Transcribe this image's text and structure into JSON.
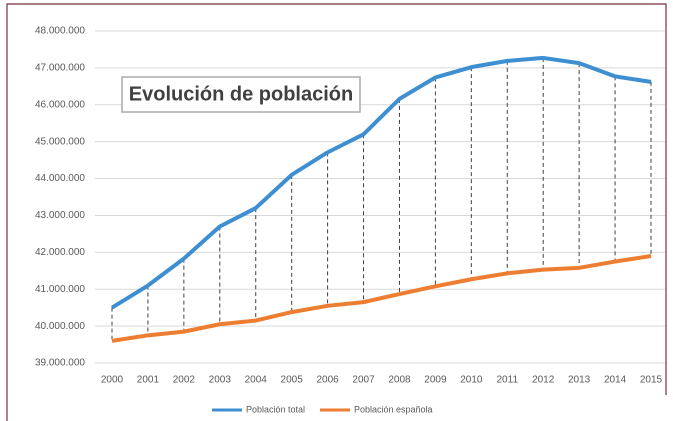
{
  "chart_data": {
    "type": "line",
    "title": "Evolución de población",
    "categories": [
      "2000",
      "2001",
      "2002",
      "2003",
      "2004",
      "2005",
      "2006",
      "2007",
      "2008",
      "2009",
      "2010",
      "2011",
      "2012",
      "2013",
      "2014",
      "2015"
    ],
    "series": [
      {
        "name": "Población total",
        "color": "#3d8fd1",
        "values": [
          40500000,
          41100000,
          41830000,
          42700000,
          43200000,
          44100000,
          44710000,
          45200000,
          46160000,
          46740000,
          47020000,
          47190000,
          47270000,
          47130000,
          46770000,
          46620000
        ]
      },
      {
        "name": "Población española",
        "color": "#ed7d31",
        "values": [
          39600000,
          39750000,
          39850000,
          40050000,
          40150000,
          40380000,
          40550000,
          40650000,
          40870000,
          41080000,
          41270000,
          41430000,
          41530000,
          41580000,
          41750000,
          41900000
        ]
      }
    ],
    "ylim": [
      39000000,
      48000000
    ],
    "yticks": [
      {
        "value": 39000000,
        "label": "39.000.000"
      },
      {
        "value": 40000000,
        "label": "40.000.000"
      },
      {
        "value": 41000000,
        "label": "41.000.000"
      },
      {
        "value": 42000000,
        "label": "42.000.000"
      },
      {
        "value": 43000000,
        "label": "43.000.000"
      },
      {
        "value": 44000000,
        "label": "44.000.000"
      },
      {
        "value": 45000000,
        "label": "45.000.000"
      },
      {
        "value": 46000000,
        "label": "46.000.000"
      },
      {
        "value": 47000000,
        "label": "47.000.000"
      },
      {
        "value": 48000000,
        "label": "48.000.000"
      }
    ],
    "grid": true,
    "drop_lines": true,
    "legend": "bottom"
  }
}
